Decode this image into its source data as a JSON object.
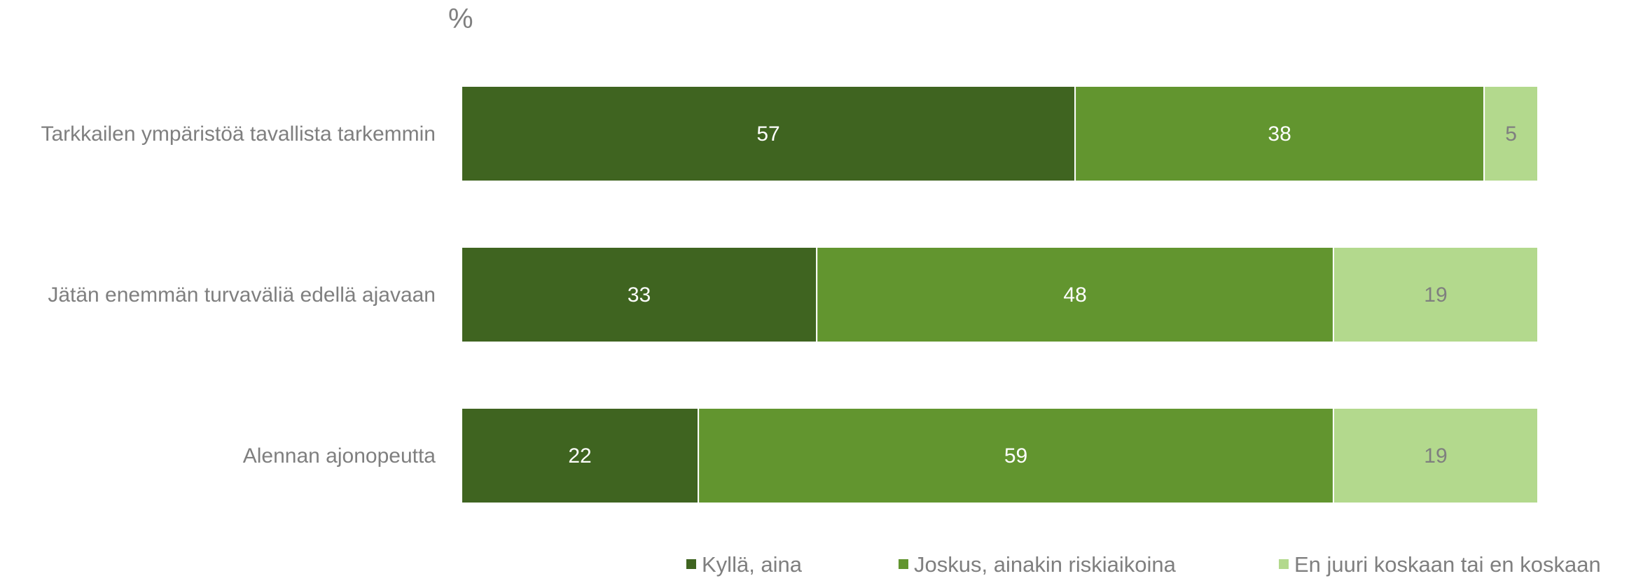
{
  "chart_data": {
    "type": "bar",
    "orientation": "horizontal",
    "stacked": true,
    "unit_label": "%",
    "title": "",
    "xlabel": "",
    "ylabel": "",
    "xlim": [
      0,
      100
    ],
    "categories": [
      "Tarkkailen ympäristöä tavallista tarkemmin",
      "Jätän enemmän turvaväliä edellä ajavaan",
      "Alennan ajonopeutta"
    ],
    "series": [
      {
        "name": "Kyllä, aina",
        "color": "#3f6420",
        "label_color": "#ffffff",
        "values": [
          57,
          33,
          22
        ]
      },
      {
        "name": "Joskus, ainakin riskiaikoina",
        "color": "#62952f",
        "label_color": "#ffffff",
        "values": [
          38,
          48,
          59
        ]
      },
      {
        "name": "En juuri koskaan tai en koskaan",
        "color": "#b3d98d",
        "label_color": "#7f7f7f",
        "values": [
          5,
          19,
          19
        ]
      }
    ],
    "grid": false,
    "legend_position": "bottom"
  }
}
